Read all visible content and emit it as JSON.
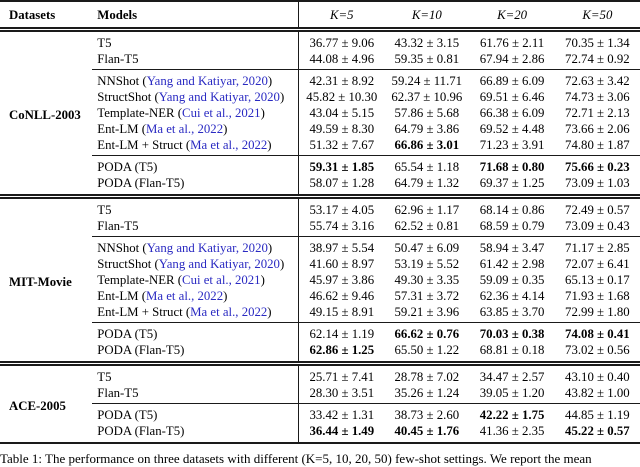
{
  "table": {
    "headers": {
      "datasets": "Datasets",
      "models": "Models",
      "k_columns": [
        "K=5",
        "K=10",
        "K=20",
        "K=50"
      ]
    },
    "blocks": [
      {
        "dataset": "CoNLL-2003",
        "groups": [
          {
            "rows": [
              {
                "model": "T5",
                "citation": null,
                "values": [
                  "36.77 ± 9.06",
                  "43.32 ± 3.15",
                  "61.76 ± 2.11",
                  "70.35 ± 1.34"
                ],
                "bold": [
                  0,
                  0,
                  0,
                  0
                ]
              },
              {
                "model": "Flan-T5",
                "citation": null,
                "values": [
                  "44.08 ± 4.96",
                  "59.35 ± 0.81",
                  "67.94 ± 2.86",
                  "72.74 ± 0.92"
                ],
                "bold": [
                  0,
                  0,
                  0,
                  0
                ]
              }
            ]
          },
          {
            "rows": [
              {
                "model": "NNShot",
                "citation": "Yang and Katiyar, 2020",
                "values": [
                  "42.31 ± 8.92",
                  "59.24 ± 11.71",
                  "66.89 ± 6.09",
                  "72.63 ± 3.42"
                ],
                "bold": [
                  0,
                  0,
                  0,
                  0
                ]
              },
              {
                "model": "StructShot",
                "citation": "Yang and Katiyar, 2020",
                "values": [
                  "45.82 ± 10.30",
                  "62.37 ± 10.96",
                  "69.51 ± 6.46",
                  "74.73 ± 3.06"
                ],
                "bold": [
                  0,
                  0,
                  0,
                  0
                ]
              },
              {
                "model": "Template-NER",
                "citation": "Cui et al., 2021",
                "values": [
                  "43.04 ± 5.15",
                  "57.86 ± 5.68",
                  "66.38 ± 6.09",
                  "72.71 ± 2.13"
                ],
                "bold": [
                  0,
                  0,
                  0,
                  0
                ]
              },
              {
                "model": "Ent-LM",
                "citation": "Ma et al., 2022",
                "values": [
                  "49.59 ± 8.30",
                  "64.79 ± 3.86",
                  "69.52 ± 4.48",
                  "73.66 ± 2.06"
                ],
                "bold": [
                  0,
                  0,
                  0,
                  0
                ]
              },
              {
                "model": "Ent-LM + Struct",
                "citation": "Ma et al., 2022",
                "values": [
                  "51.32 ± 7.67",
                  "66.86 ± 3.01",
                  "71.23 ± 3.91",
                  "74.80 ± 1.87"
                ],
                "bold": [
                  0,
                  1,
                  0,
                  0
                ]
              }
            ]
          },
          {
            "rows": [
              {
                "model": "PODA (T5)",
                "citation": null,
                "values": [
                  "59.31 ± 1.85",
                  "65.54 ± 1.18",
                  "71.68 ± 0.80",
                  "75.66 ± 0.23"
                ],
                "bold": [
                  1,
                  0,
                  1,
                  1
                ]
              },
              {
                "model": "PODA (Flan-T5)",
                "citation": null,
                "values": [
                  "58.07 ± 1.28",
                  "64.79 ± 1.32",
                  "69.37 ± 1.25",
                  "73.09 ± 1.03"
                ],
                "bold": [
                  0,
                  0,
                  0,
                  0
                ]
              }
            ]
          }
        ]
      },
      {
        "dataset": "MIT-Movie",
        "groups": [
          {
            "rows": [
              {
                "model": "T5",
                "citation": null,
                "values": [
                  "53.17 ± 4.05",
                  "62.96 ± 1.17",
                  "68.14 ± 0.86",
                  "72.49 ± 0.57"
                ],
                "bold": [
                  0,
                  0,
                  0,
                  0
                ]
              },
              {
                "model": "Flan-T5",
                "citation": null,
                "values": [
                  "55.74 ± 3.16",
                  "62.52 ± 0.81",
                  "68.59 ± 0.79",
                  "73.09 ± 0.43"
                ],
                "bold": [
                  0,
                  0,
                  0,
                  0
                ]
              }
            ]
          },
          {
            "rows": [
              {
                "model": "NNShot",
                "citation": "Yang and Katiyar, 2020",
                "values": [
                  "38.97 ± 5.54",
                  "50.47 ± 6.09",
                  "58.94 ± 3.47",
                  "71.17 ± 2.85"
                ],
                "bold": [
                  0,
                  0,
                  0,
                  0
                ]
              },
              {
                "model": "StructShot",
                "citation": "Yang and Katiyar, 2020",
                "values": [
                  "41.60 ± 8.97",
                  "53.19 ± 5.52",
                  "61.42 ± 2.98",
                  "72.07 ± 6.41"
                ],
                "bold": [
                  0,
                  0,
                  0,
                  0
                ]
              },
              {
                "model": "Template-NER",
                "citation": "Cui et al., 2021",
                "values": [
                  "45.97 ± 3.86",
                  "49.30 ± 3.35",
                  "59.09 ± 0.35",
                  "65.13 ± 0.17"
                ],
                "bold": [
                  0,
                  0,
                  0,
                  0
                ]
              },
              {
                "model": "Ent-LM",
                "citation": "Ma et al., 2022",
                "values": [
                  "46.62 ± 9.46",
                  "57.31 ± 3.72",
                  "62.36 ± 4.14",
                  "71.93 ± 1.68"
                ],
                "bold": [
                  0,
                  0,
                  0,
                  0
                ]
              },
              {
                "model": "Ent-LM + Struct",
                "citation": "Ma et al., 2022",
                "values": [
                  "49.15 ± 8.91",
                  "59.21 ± 3.96",
                  "63.85 ± 3.70",
                  "72.99 ± 1.80"
                ],
                "bold": [
                  0,
                  0,
                  0,
                  0
                ]
              }
            ]
          },
          {
            "rows": [
              {
                "model": "PODA (T5)",
                "citation": null,
                "values": [
                  "62.14 ± 1.19",
                  "66.62 ± 0.76",
                  "70.03 ± 0.38",
                  "74.08 ± 0.41"
                ],
                "bold": [
                  0,
                  1,
                  1,
                  1
                ]
              },
              {
                "model": "PODA (Flan-T5)",
                "citation": null,
                "values": [
                  "62.86 ± 1.25",
                  "65.50 ± 1.22",
                  "68.81 ± 0.18",
                  "73.02 ± 0.56"
                ],
                "bold": [
                  1,
                  0,
                  0,
                  0
                ]
              }
            ]
          }
        ]
      },
      {
        "dataset": "ACE-2005",
        "groups": [
          {
            "rows": [
              {
                "model": "T5",
                "citation": null,
                "values": [
                  "25.71 ± 7.41",
                  "28.78 ± 7.02",
                  "34.47 ± 2.57",
                  "43.10 ± 0.40"
                ],
                "bold": [
                  0,
                  0,
                  0,
                  0
                ]
              },
              {
                "model": "Flan-T5",
                "citation": null,
                "values": [
                  "28.30 ± 3.51",
                  "35.26 ± 1.24",
                  "39.05 ± 1.20",
                  "43.82 ± 1.00"
                ],
                "bold": [
                  0,
                  0,
                  0,
                  0
                ]
              }
            ]
          },
          {
            "rows": [
              {
                "model": "PODA (T5)",
                "citation": null,
                "values": [
                  "33.42 ± 1.31",
                  "38.73 ± 2.60",
                  "42.22 ± 1.75",
                  "44.85 ± 1.19"
                ],
                "bold": [
                  0,
                  0,
                  1,
                  0
                ]
              },
              {
                "model": "PODA (Flan-T5)",
                "citation": null,
                "values": [
                  "36.44 ± 1.49",
                  "40.45 ± 1.76",
                  "41.36 ± 2.35",
                  "45.22 ± 0.57"
                ],
                "bold": [
                  1,
                  1,
                  0,
                  1
                ]
              }
            ]
          }
        ]
      }
    ]
  },
  "caption": "Table 1: The performance on three datasets with different (K=5, 10, 20, 50) few-shot settings. We report the mean",
  "colors": {
    "citation_link": "#2a2ac2",
    "rule": "#1a1a1a",
    "background": "#ffffff",
    "text": "#000000"
  }
}
